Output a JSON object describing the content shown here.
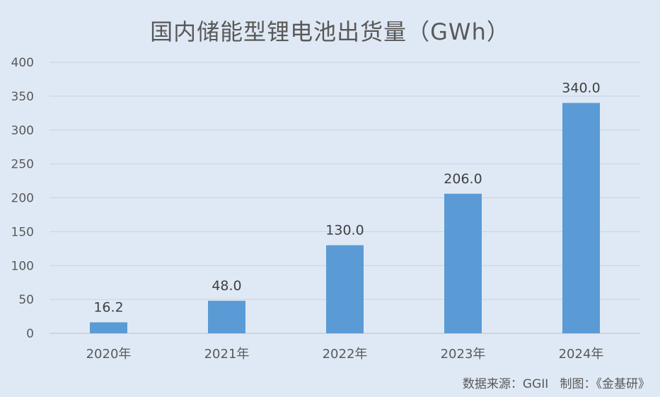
{
  "chart_data": {
    "type": "bar",
    "title": "国内储能型锂电池出货量（GWh）",
    "categories": [
      "2020年",
      "2021年",
      "2022年",
      "2023年",
      "2024年"
    ],
    "values": [
      16.2,
      48.0,
      130.0,
      206.0,
      340.0
    ],
    "data_labels": [
      "16.2",
      "48.0",
      "130.0",
      "206.0",
      "340.0"
    ],
    "ylim": [
      0,
      400
    ],
    "yticks": [
      0,
      50,
      100,
      150,
      200,
      250,
      300,
      350,
      400
    ],
    "xlabel": "",
    "ylabel": "",
    "grid": true,
    "legend": "none",
    "colors": {
      "bar": "#5b9bd5",
      "background": "#dfe9f5",
      "gridline": "#c5d3e3",
      "text": "#595959"
    }
  },
  "source_note": "数据来源：GGII   制图：《金基研》"
}
